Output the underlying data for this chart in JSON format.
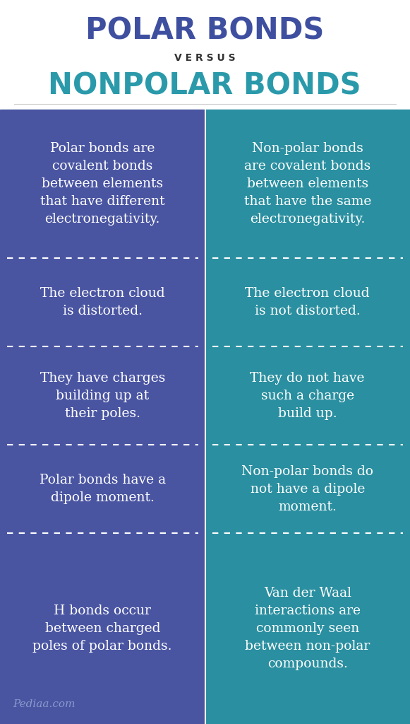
{
  "title1": "POLAR BONDS",
  "versus": "V E R S U S",
  "title2": "NONPOLAR BONDS",
  "title1_color": "#3f4fa0",
  "versus_color": "#333333",
  "title2_color": "#2a9aab",
  "left_bg": "#4a55a2",
  "right_bg": "#2a8fa0",
  "background": "#ffffff",
  "text_color": "#ffffff",
  "watermark": "Pediaa.com",
  "watermark_color": "#8899cc",
  "rows": [
    {
      "left": "Polar bonds are\ncovalent bonds\nbetween elements\nthat have different\nelectronegativity.",
      "right": "Non-polar bonds\nare covalent bonds\nbetween elements\nthat have the same\nelectronegativity."
    },
    {
      "left": "The electron cloud\nis distorted.",
      "right": "The electron cloud\nis not distorted."
    },
    {
      "left": "They have charges\nbuilding up at\ntheir poles.",
      "right": "They do not have\nsuch a charge\nbuild up."
    },
    {
      "left": "Polar bonds have a\ndipole moment.",
      "right": "Non-polar bonds do\nnot have a dipole\nmoment."
    },
    {
      "left": "H bonds occur\nbetween charged\npoles of polar bonds.",
      "right": "Van der Waal\ninteractions are\ncommonly seen\nbetween non-polar\ncompounds."
    }
  ],
  "row_heights_raw": [
    210,
    125,
    140,
    125,
    270
  ]
}
